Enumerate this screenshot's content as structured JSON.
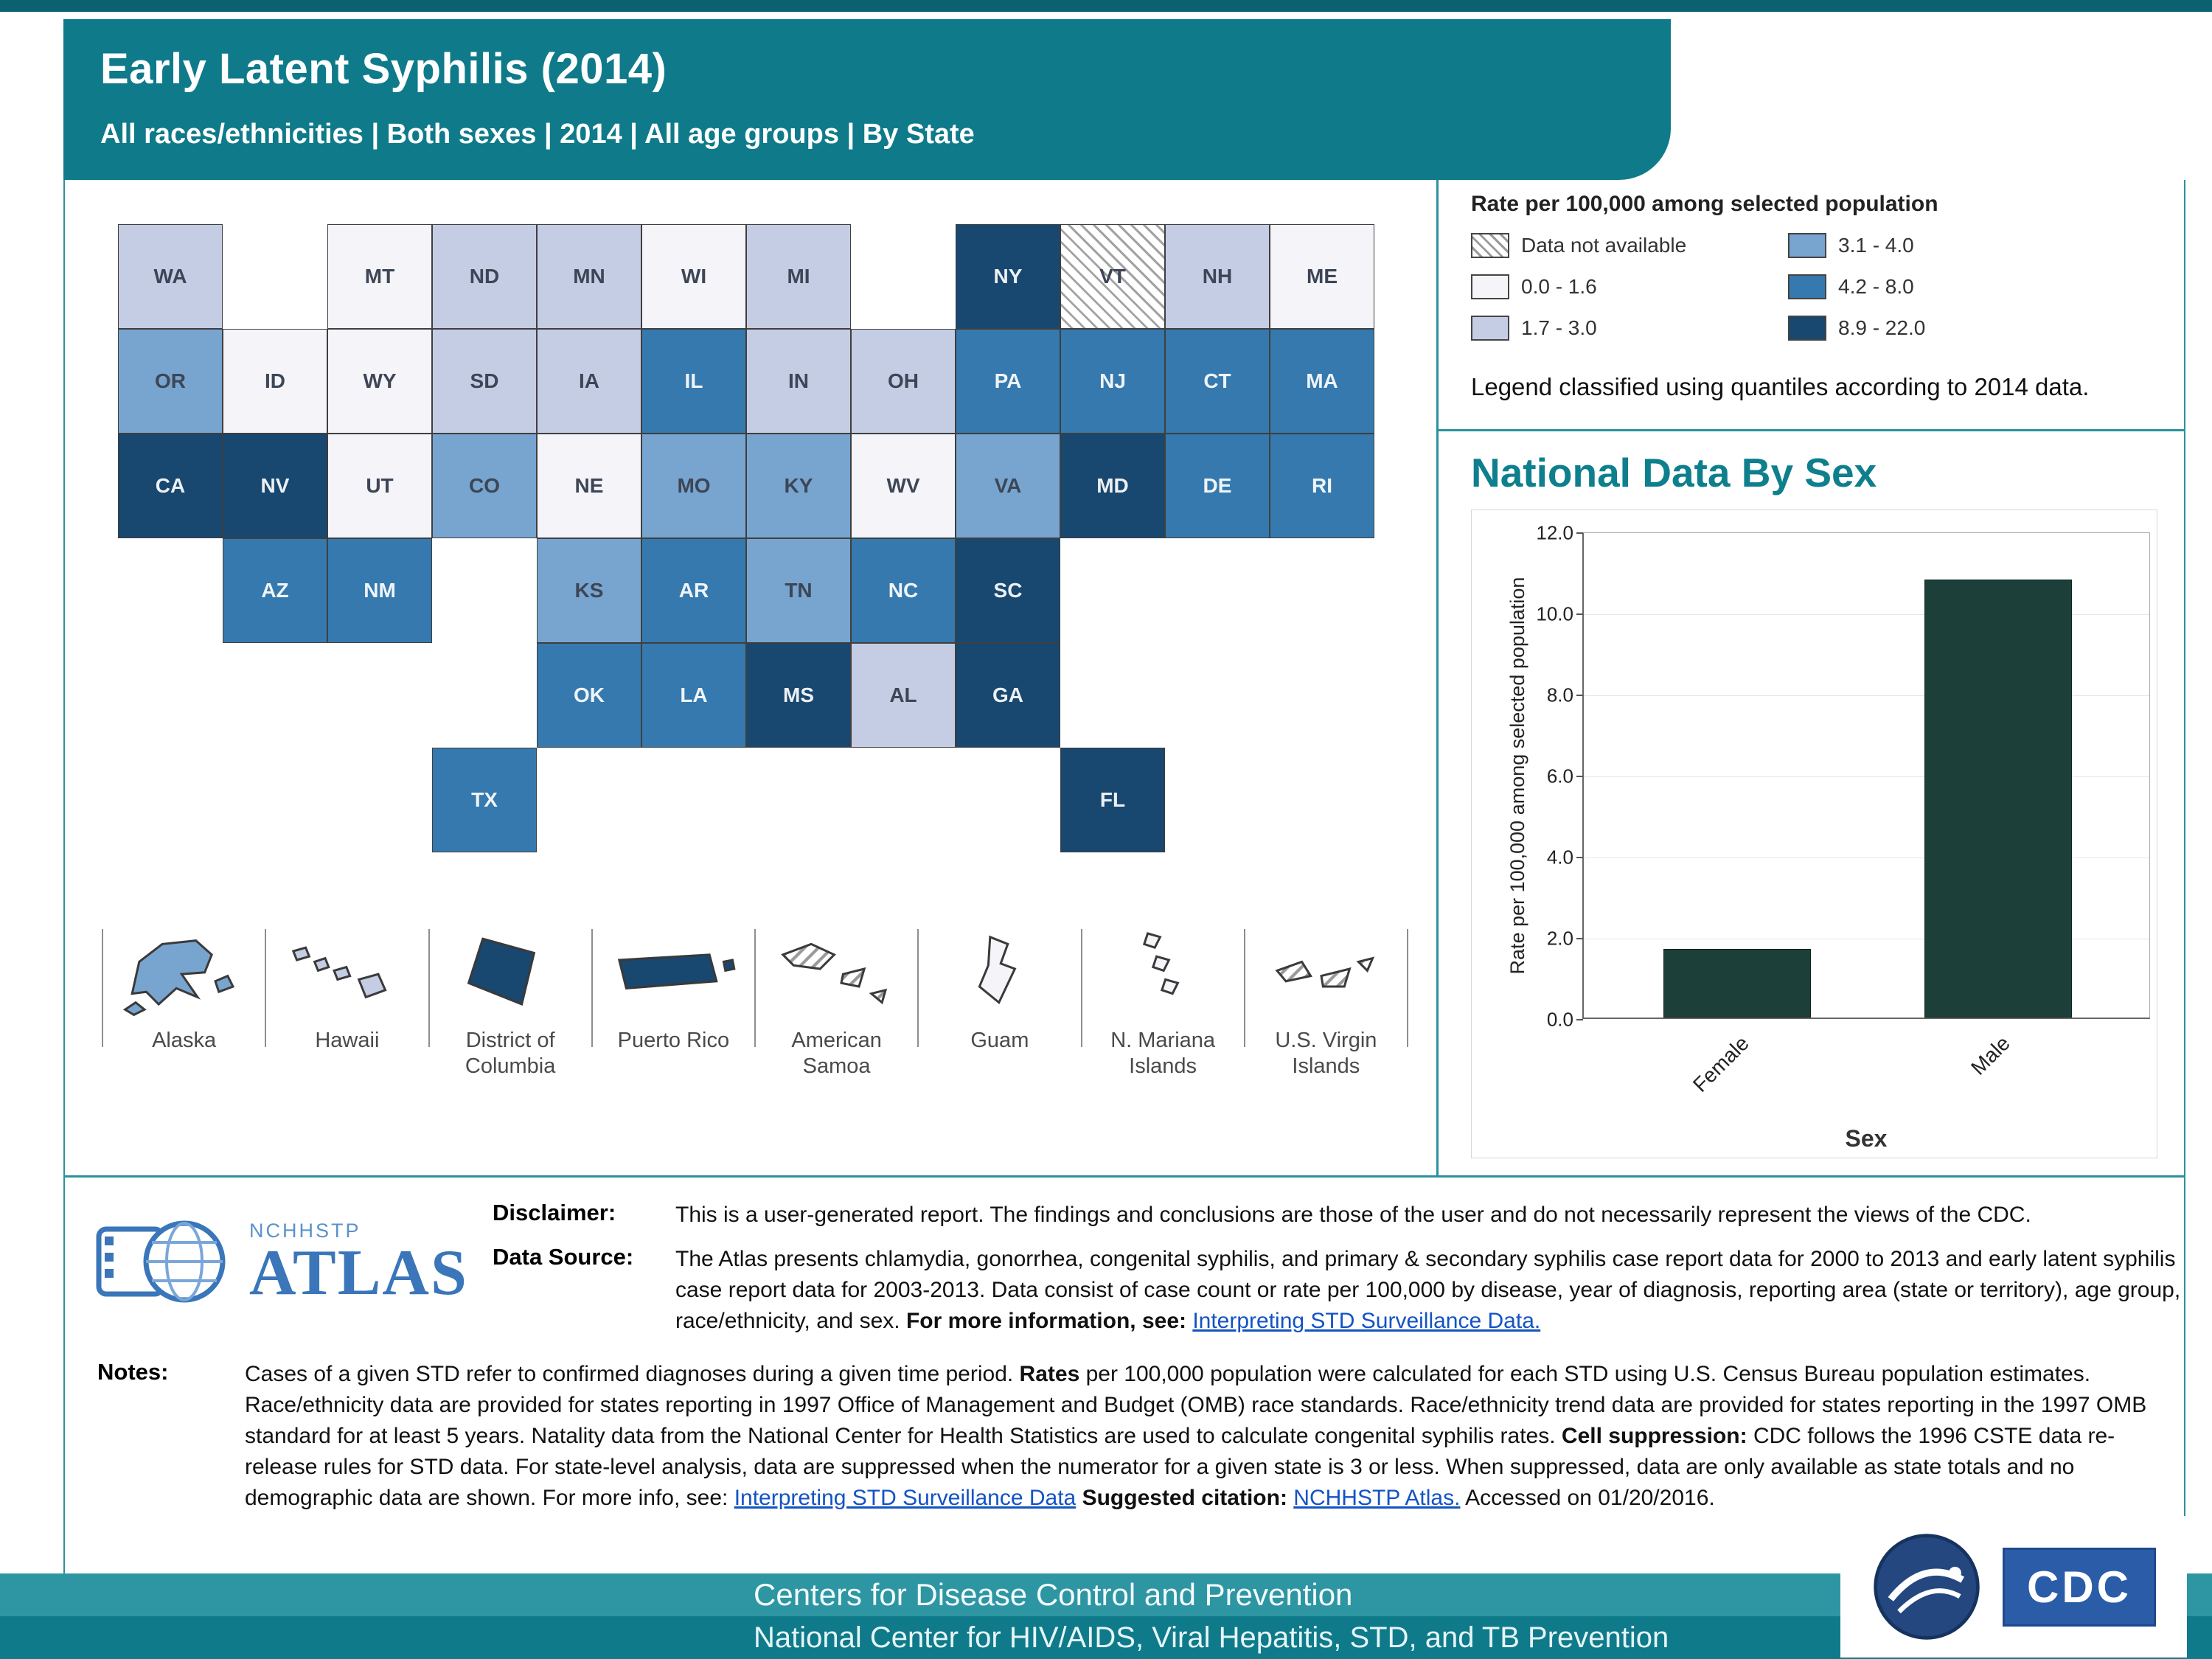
{
  "header": {
    "title": "Early Latent Syphilis (2014)",
    "subtitle": "All races/ethnicities | Both sexes | 2014 | All age groups | By State"
  },
  "legend": {
    "title": "Rate per 100,000 among selected population",
    "note": "Legend classified using quantiles according to 2014 data.",
    "items": [
      {
        "label": "Data not available",
        "color": "hatch"
      },
      {
        "label": "0.0 - 1.6",
        "color": "#f5f4f9"
      },
      {
        "label": "1.7 - 3.0",
        "color": "#c5cde4"
      },
      {
        "label": "3.1 - 4.0",
        "color": "#78a5cf"
      },
      {
        "label": "4.2 - 8.0",
        "color": "#3579ae"
      },
      {
        "label": "8.9 - 22.0",
        "color": "#18476f"
      }
    ]
  },
  "chart_data": [
    {
      "type": "choropleth",
      "unit": "Rate per 100,000 among selected population",
      "classification": "quantiles (2014)",
      "states": [
        {
          "abbr": "WA",
          "cat": 2
        },
        {
          "abbr": "MT",
          "cat": 1
        },
        {
          "abbr": "ND",
          "cat": 2
        },
        {
          "abbr": "MN",
          "cat": 2
        },
        {
          "abbr": "WI",
          "cat": 1
        },
        {
          "abbr": "MI",
          "cat": 2
        },
        {
          "abbr": "NY",
          "cat": 5
        },
        {
          "abbr": "VT",
          "cat": 0
        },
        {
          "abbr": "NH",
          "cat": 2
        },
        {
          "abbr": "ME",
          "cat": 1
        },
        {
          "abbr": "OR",
          "cat": 3
        },
        {
          "abbr": "ID",
          "cat": 1
        },
        {
          "abbr": "WY",
          "cat": 1
        },
        {
          "abbr": "SD",
          "cat": 2
        },
        {
          "abbr": "IA",
          "cat": 2
        },
        {
          "abbr": "IL",
          "cat": 4
        },
        {
          "abbr": "IN",
          "cat": 2
        },
        {
          "abbr": "OH",
          "cat": 2
        },
        {
          "abbr": "PA",
          "cat": 4
        },
        {
          "abbr": "NJ",
          "cat": 4
        },
        {
          "abbr": "CT",
          "cat": 4
        },
        {
          "abbr": "MA",
          "cat": 4
        },
        {
          "abbr": "CA",
          "cat": 5
        },
        {
          "abbr": "NV",
          "cat": 5
        },
        {
          "abbr": "UT",
          "cat": 1
        },
        {
          "abbr": "CO",
          "cat": 3
        },
        {
          "abbr": "NE",
          "cat": 1
        },
        {
          "abbr": "MO",
          "cat": 3
        },
        {
          "abbr": "KY",
          "cat": 3
        },
        {
          "abbr": "WV",
          "cat": 1
        },
        {
          "abbr": "VA",
          "cat": 3
        },
        {
          "abbr": "MD",
          "cat": 5
        },
        {
          "abbr": "DE",
          "cat": 4
        },
        {
          "abbr": "RI",
          "cat": 4
        },
        {
          "abbr": "AZ",
          "cat": 4
        },
        {
          "abbr": "NM",
          "cat": 4
        },
        {
          "abbr": "KS",
          "cat": 3
        },
        {
          "abbr": "AR",
          "cat": 4
        },
        {
          "abbr": "TN",
          "cat": 3
        },
        {
          "abbr": "NC",
          "cat": 4
        },
        {
          "abbr": "SC",
          "cat": 5
        },
        {
          "abbr": "OK",
          "cat": 4
        },
        {
          "abbr": "LA",
          "cat": 4
        },
        {
          "abbr": "MS",
          "cat": 5
        },
        {
          "abbr": "AL",
          "cat": 2
        },
        {
          "abbr": "GA",
          "cat": 5
        },
        {
          "abbr": "TX",
          "cat": 4
        },
        {
          "abbr": "FL",
          "cat": 5
        }
      ],
      "insets": [
        {
          "name": "Alaska",
          "cat": 3
        },
        {
          "name": "Hawaii",
          "cat": 2
        },
        {
          "name": "District of Columbia",
          "cat": 5
        },
        {
          "name": "Puerto Rico",
          "cat": 5
        },
        {
          "name": "American Samoa",
          "cat": 0
        },
        {
          "name": "Guam",
          "cat": 1
        },
        {
          "name": "N. Mariana Islands",
          "cat": 1
        },
        {
          "name": "U.S. Virgin Islands",
          "cat": 0
        }
      ]
    },
    {
      "type": "bar",
      "title": "National Data By Sex",
      "categories": [
        "Female",
        "Male"
      ],
      "values": [
        1.7,
        10.8
      ],
      "xlabel": "Sex",
      "ylabel": "Rate per 100,000 among selected population",
      "ylim": [
        0,
        12
      ],
      "yticks": [
        "0.0",
        "2.0",
        "4.0",
        "6.0",
        "8.0",
        "10.0",
        "12.0"
      ],
      "bar_color": "#1c3f3a",
      "legend_position": "none",
      "grid": "light horizontal"
    }
  ],
  "info": {
    "disclaimer_label": "Disclaimer:",
    "disclaimer": "This is a user-generated report. The findings and conclusions are those of the user and do not necessarily represent the views of the CDC.",
    "datasource_label": "Data Source:",
    "datasource_segments": [
      {
        "t": "x",
        "s": "The Atlas presents chlamydia, gonorrhea, congenital syphilis, and primary & secondary syphilis case report data for 2000 to 2013 and early latent syphilis case report data for 2003-2013. Data consist of case count or rate per 100,000 by disease, year of diagnosis, reporting area (state or territory), age group, race/ethnicity, and sex. "
      },
      {
        "t": "b",
        "s": "For more information, see: "
      },
      {
        "t": "a",
        "s": "Interpreting STD Surveillance Data."
      }
    ],
    "notes_label": "Notes:",
    "notes_segments": [
      {
        "t": "x",
        "s": "Cases of a given STD refer to confirmed diagnoses during a given time period. "
      },
      {
        "t": "b",
        "s": "Rates"
      },
      {
        "t": "x",
        "s": " per 100,000 population were calculated for each STD using U.S. Census Bureau population estimates. Race/ethnicity data are provided for states reporting in 1997 Office of Management and Budget (OMB) race standards. Race/ethnicity trend data are provided for states reporting in the 1997 OMB standard for at least 5 years. Natality data from the National Center for Health Statistics are used to calculate congenital syphilis rates. "
      },
      {
        "t": "b",
        "s": "Cell suppression:"
      },
      {
        "t": "x",
        "s": " CDC follows the 1996 CSTE data re-release rules for STD data. For state-level analysis, data are suppressed when the numerator for a given state is 3 or less. When suppressed, data are only available as state totals and no demographic data are shown. For more info, see: "
      },
      {
        "t": "a",
        "s": "Interpreting STD Surveillance Data"
      },
      {
        "t": "b",
        "s": " Suggested citation: "
      },
      {
        "t": "a",
        "s": "NCHHSTP Atlas."
      },
      {
        "t": "x",
        "s": " Accessed on 01/20/2016."
      }
    ]
  },
  "logo": {
    "small": "NCHHSTP",
    "big": "ATLAS"
  },
  "footer": {
    "line1": "Centers for Disease Control and Prevention",
    "line2": "National Center for HIV/AIDS, Viral Hepatitis, STD, and TB Prevention",
    "cdc": "CDC"
  },
  "colors": {
    "header_teal": "#0f7a8a",
    "footer_teal_light": "#2e96a3",
    "rule_teal": "#2b919e",
    "chart_title_teal": "#0e7f8c",
    "link_blue": "#1353c4",
    "atlas_blue": "#3a76b9",
    "bar_dark_green": "#1c3f3a"
  }
}
